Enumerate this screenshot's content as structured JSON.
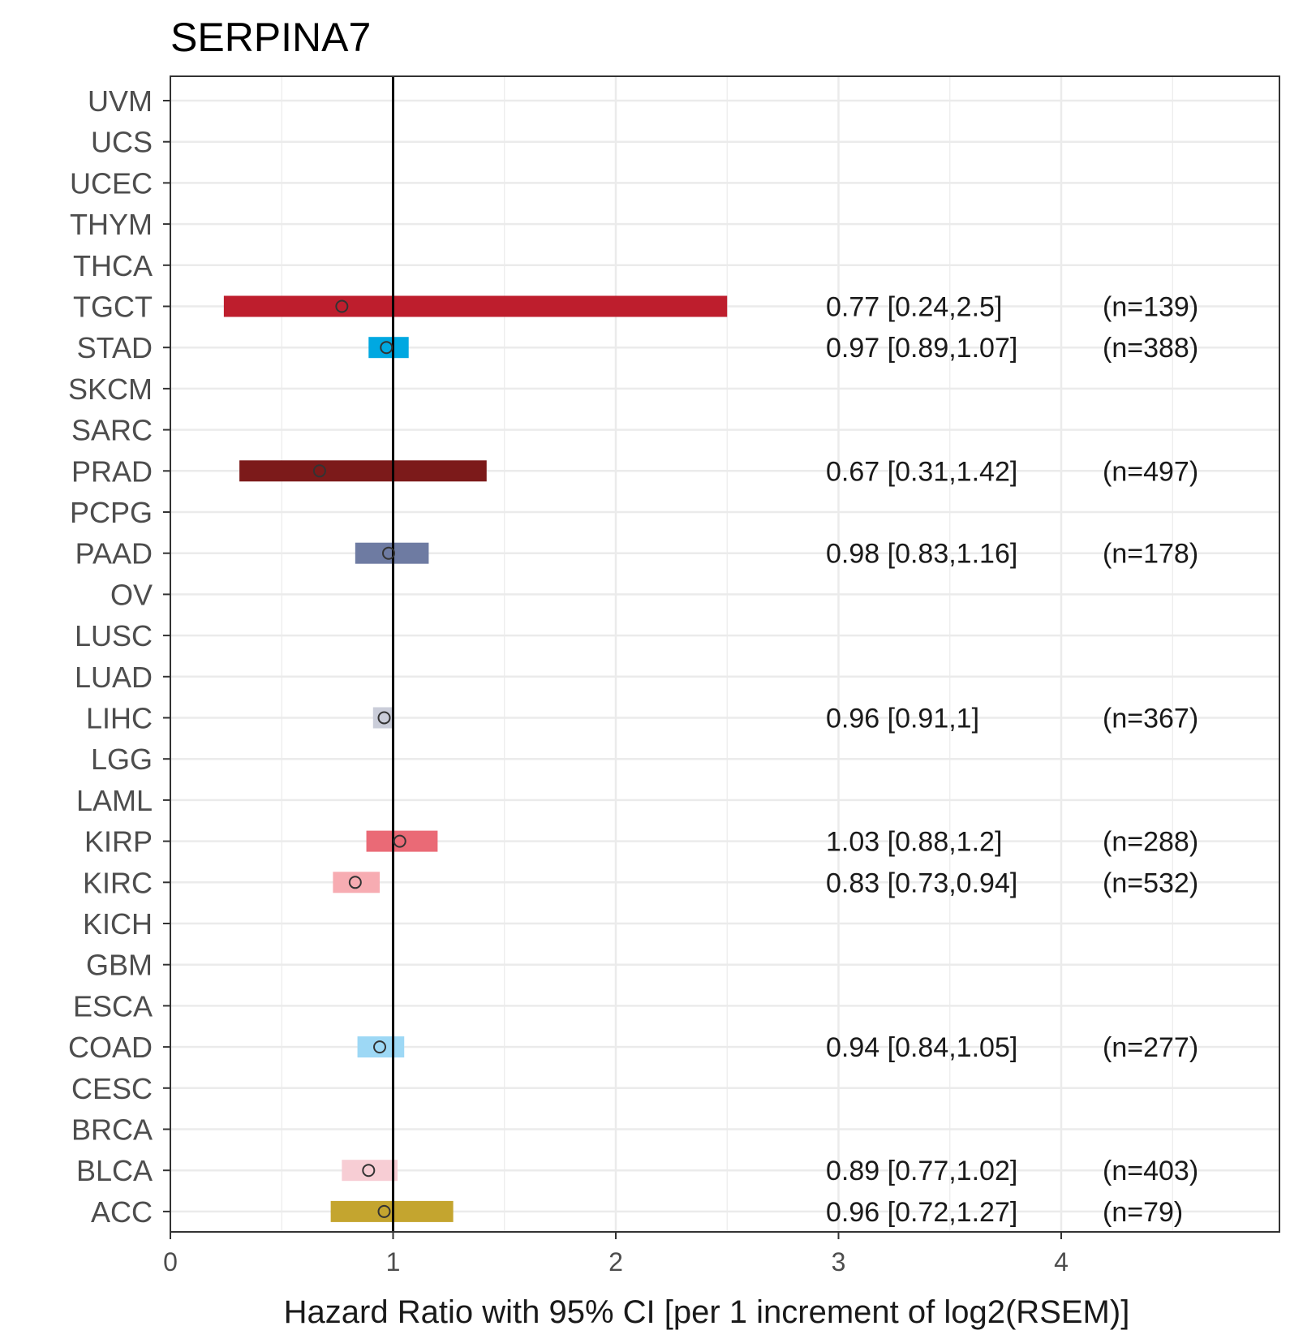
{
  "chart_data": {
    "type": "forest",
    "title": "SERPINA7",
    "xlabel": "Hazard Ratio with 95% CI [per 1 increment of log2(RSEM)]",
    "xlim": [
      0,
      4.98
    ],
    "xticks": [
      0,
      1,
      2,
      3,
      4
    ],
    "xtick_labels": [
      "0",
      "1",
      "2",
      "3",
      "4"
    ],
    "reference_line": 1,
    "grid": true,
    "categories": [
      "UVM",
      "UCS",
      "UCEC",
      "THYM",
      "THCA",
      "TGCT",
      "STAD",
      "SKCM",
      "SARC",
      "PRAD",
      "PCPG",
      "PAAD",
      "OV",
      "LUSC",
      "LUAD",
      "LIHC",
      "LGG",
      "LAML",
      "KIRP",
      "KIRC",
      "KICH",
      "GBM",
      "ESCA",
      "COAD",
      "CESC",
      "BRCA",
      "BLCA",
      "ACC"
    ],
    "rows": [
      {
        "label": "TGCT",
        "hr": 0.77,
        "lo": 0.24,
        "hi": 2.5,
        "color": "#BE1E2D",
        "text": "0.77 [0.24,2.5]",
        "n": "(n=139)"
      },
      {
        "label": "STAD",
        "hr": 0.97,
        "lo": 0.89,
        "hi": 1.07,
        "color": "#00A8E1",
        "text": "0.97 [0.89,1.07]",
        "n": "(n=388)"
      },
      {
        "label": "PRAD",
        "hr": 0.67,
        "lo": 0.31,
        "hi": 1.42,
        "color": "#7C1A1A",
        "text": "0.67 [0.31,1.42]",
        "n": "(n=497)"
      },
      {
        "label": "PAAD",
        "hr": 0.98,
        "lo": 0.83,
        "hi": 1.16,
        "color": "#6E7BA2",
        "text": "0.98 [0.83,1.16]",
        "n": "(n=178)"
      },
      {
        "label": "LIHC",
        "hr": 0.96,
        "lo": 0.91,
        "hi": 1.0,
        "color": "#CACDD9",
        "text": "0.96 [0.91,1]",
        "n": "(n=367)"
      },
      {
        "label": "KIRP",
        "hr": 1.03,
        "lo": 0.88,
        "hi": 1.2,
        "color": "#EA6A76",
        "text": "1.03 [0.88,1.2]",
        "n": "(n=288)"
      },
      {
        "label": "KIRC",
        "hr": 0.83,
        "lo": 0.73,
        "hi": 0.94,
        "color": "#F7ACB2",
        "text": "0.83 [0.73,0.94]",
        "n": "(n=532)"
      },
      {
        "label": "COAD",
        "hr": 0.94,
        "lo": 0.84,
        "hi": 1.05,
        "color": "#9DD8F5",
        "text": "0.94 [0.84,1.05]",
        "n": "(n=277)"
      },
      {
        "label": "BLCA",
        "hr": 0.89,
        "lo": 0.77,
        "hi": 1.02,
        "color": "#F7CDD4",
        "text": "0.89 [0.77,1.02]",
        "n": "(n=403)"
      },
      {
        "label": "ACC",
        "hr": 0.96,
        "lo": 0.72,
        "hi": 1.27,
        "color": "#C4A52F",
        "text": "0.96 [0.72,1.27]",
        "n": "(n=79)"
      }
    ],
    "colors": {
      "gridline": "#EBEBEB",
      "panel_border": "#333333",
      "reference_line": "#000000"
    }
  }
}
